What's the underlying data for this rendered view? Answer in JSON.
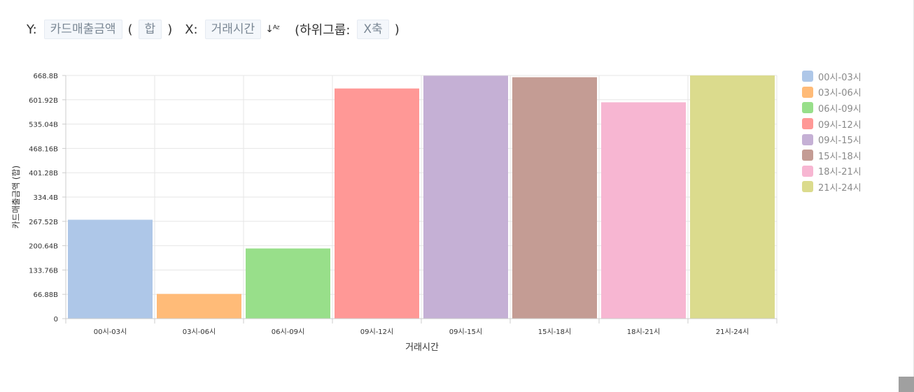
{
  "controls": {
    "y_label": "Y:",
    "y_value": "카드매출금액",
    "paren_open": "(",
    "agg_value": "합",
    "paren_close": ")",
    "x_label": "X:",
    "x_value": "거래시간",
    "sort_icon_text": "↓ᴬᶻ",
    "subgroup_open": "(하위그룹:",
    "subgroup_value": "X축",
    "subgroup_close": ")"
  },
  "colors": {
    "grid": "#e6e6e6",
    "axis": "#cccccc",
    "tick_text": "#333333"
  },
  "chart_data": {
    "type": "bar",
    "categories": [
      "00시-03시",
      "03시-06시",
      "06시-09시",
      "09시-12시",
      "09시-15시",
      "15시-18시",
      "18시-21시",
      "21시-24시"
    ],
    "values": [
      272,
      68,
      193,
      633,
      668,
      664,
      595,
      668.8
    ],
    "colors": [
      "#aec7e8",
      "#ffbb78",
      "#98df8a",
      "#ff9896",
      "#c5b0d5",
      "#c49c94",
      "#f7b6d2",
      "#dbdb8d"
    ],
    "yticks": [
      "0",
      "66.88B",
      "133.76B",
      "200.64B",
      "267.52B",
      "334.4B",
      "401.28B",
      "468.16B",
      "535.04B",
      "601.92B",
      "668.8B"
    ],
    "ytick_values": [
      0,
      66.88,
      133.76,
      200.64,
      267.52,
      334.4,
      401.28,
      468.16,
      535.04,
      601.92,
      668.8
    ],
    "ylim": [
      0,
      668.8
    ],
    "xlabel": "거래시간",
    "ylabel": "카드매출금액 (합)",
    "legend": [
      "00시-03시",
      "03시-06시",
      "06시-09시",
      "09시-12시",
      "09시-15시",
      "15시-18시",
      "18시-21시",
      "21시-24시"
    ],
    "legend_position": "right",
    "grid": true
  }
}
